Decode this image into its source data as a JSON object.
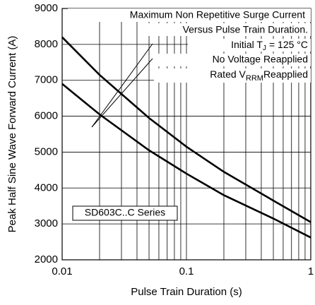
{
  "chart_data": {
    "type": "line",
    "x_label": "Pulse Train Duration (s)",
    "y_label": "Peak Half Sine Wave Forward Current (A)",
    "x": [
      0.01,
      0.02,
      0.05,
      0.1,
      0.2,
      0.5,
      1
    ],
    "series": [
      {
        "name": "No Voltage Reapplied",
        "color": "#000000",
        "values": [
          8200,
          7150,
          5950,
          5150,
          4450,
          3650,
          3050
        ]
      },
      {
        "color": "#000000",
        "values": [
          6900,
          6050,
          5050,
          4400,
          3800,
          3150,
          2620
        ]
      }
    ],
    "xlim": [
      0.01,
      1
    ],
    "xticks": [
      0.01,
      0.1,
      1
    ],
    "xscale": "log",
    "ylim": [
      2000,
      9000
    ],
    "yticks": [
      2000,
      3000,
      4000,
      5000,
      6000,
      7000,
      8000,
      9000
    ],
    "grid": true,
    "annotations": {
      "title1": "Maximum Non Repetitive Surge Current",
      "title2": "Versus Pulse Train Duration.",
      "cond": [
        "Initial T",
        "J",
        "= 125 °C"
      ],
      "rated": [
        "Rated V",
        "RRM",
        "Reapplied"
      ],
      "series_box": "SD603C..C Series"
    }
  }
}
